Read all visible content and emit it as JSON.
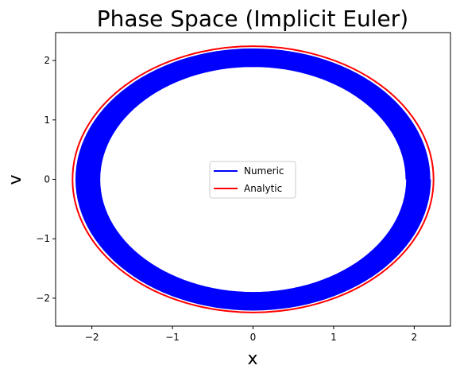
{
  "chart_data": {
    "type": "line",
    "title": "Phase Space  (Implicit Euler)",
    "xlabel": "x",
    "ylabel": "v",
    "xlim": [
      -2.45,
      2.45
    ],
    "ylim": [
      -2.47,
      2.47
    ],
    "xticks": [
      -2,
      -1,
      0,
      1,
      2
    ],
    "yticks": [
      -2,
      -1,
      0,
      1,
      2
    ],
    "xtick_labels": [
      "−2",
      "−1",
      "0",
      "1",
      "2"
    ],
    "ytick_labels": [
      "−2",
      "−1",
      "0",
      "1",
      "2"
    ],
    "grid": false,
    "legend_position": "center",
    "series": [
      {
        "name": "Numeric",
        "color": "#0000ff",
        "kind": "spiral",
        "x_amplitude_start": 2.2,
        "x_amplitude_end": 1.9,
        "v_amplitude_start": 2.2,
        "v_amplitude_end": 1.9,
        "turns": 40
      },
      {
        "name": "Analytic",
        "color": "#ff0000",
        "kind": "ellipse",
        "x_amplitude": 2.24,
        "v_amplitude": 2.24
      }
    ]
  }
}
